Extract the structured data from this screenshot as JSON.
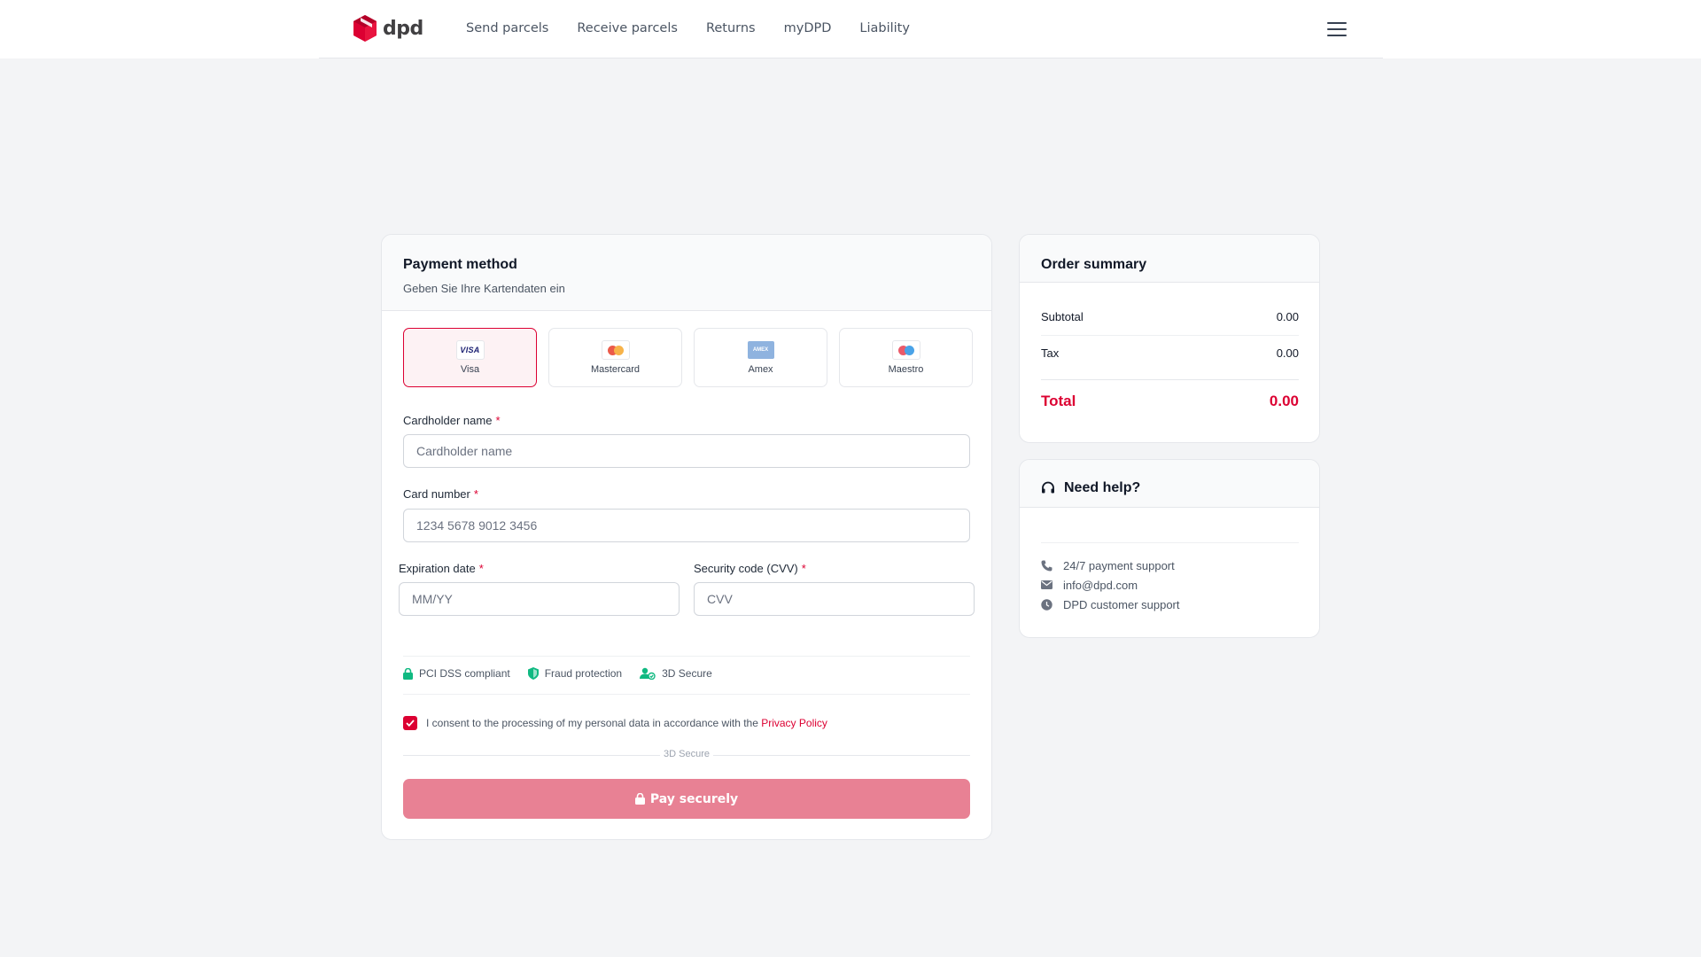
{
  "header": {
    "logo_text": "dpd",
    "nav": [
      "Send parcels",
      "Receive parcels",
      "Returns",
      "myDPD",
      "Liability"
    ]
  },
  "payment": {
    "title": "Payment method",
    "subtitle": "Geben Sie Ihre Kartendaten ein",
    "methods": [
      {
        "label": "Visa",
        "icon": "visa-icon",
        "selected": true
      },
      {
        "label": "Mastercard",
        "icon": "mastercard-icon",
        "selected": false
      },
      {
        "label": "Amex",
        "icon": "amex-icon",
        "selected": false
      },
      {
        "label": "Maestro",
        "icon": "maestro-icon",
        "selected": false
      }
    ],
    "cardholder": {
      "label": "Cardholder name",
      "placeholder": "Cardholder name",
      "required_mark": "*"
    },
    "card_number": {
      "label": "Card number",
      "placeholder": "1234 5678 9012 3456",
      "required_mark": "*"
    },
    "expiry": {
      "label": "Expiration date",
      "placeholder": "MM/YY",
      "required_mark": "*"
    },
    "cvv": {
      "label": "Security code (CVV)",
      "placeholder": "CVV",
      "required_mark": "*"
    },
    "badges": [
      {
        "label": "PCI DSS compliant",
        "icon": "lock-icon"
      },
      {
        "label": "Fraud protection",
        "icon": "shield-icon"
      },
      {
        "label": "3D Secure",
        "icon": "user-check-icon"
      }
    ],
    "consent": {
      "text": "I consent to the processing of my personal data in accordance with the ",
      "link": "Privacy Policy",
      "checked": true
    },
    "separator_text": "3D Secure",
    "pay_button": "Pay securely"
  },
  "summary": {
    "title": "Order summary",
    "subtotal_label": "Subtotal",
    "subtotal_value": "0.00",
    "tax_label": "Tax",
    "tax_value": "0.00",
    "total_label": "Total",
    "total_value": "0.00"
  },
  "help": {
    "title": "Need help?",
    "items": [
      {
        "text": "24/7 payment support",
        "icon": "phone-icon"
      },
      {
        "text": "info@dpd.com",
        "icon": "mail-icon"
      },
      {
        "text": "DPD customer support",
        "icon": "clock-icon"
      }
    ]
  },
  "colors": {
    "brand": "#dc0032",
    "button": "#e88194",
    "badge_icon": "#10b981"
  }
}
